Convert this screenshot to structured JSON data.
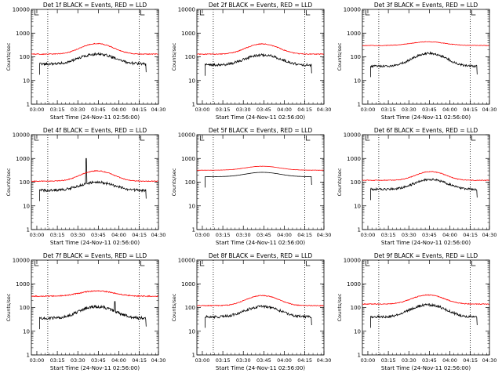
{
  "figure": {
    "x_tick_labels": [
      "03:00",
      "03:15",
      "03:30",
      "03:45",
      "04:00",
      "04:15",
      "04:30"
    ],
    "y_tick_labels": [
      "1",
      "10",
      "100",
      "1000",
      "10000"
    ],
    "colors": {
      "events": "#000000",
      "lld": "#ff0000",
      "axes": "#000000",
      "background": "#ffffff"
    }
  },
  "chart_data": [
    {
      "type": "line",
      "title": "Det 1f BLACK = Events, RED = LLD",
      "xlabel": "Start Time (24-Nov-11 02:56:00)",
      "ylabel": "Counts/sec",
      "y_scale": "log",
      "ylim": [
        1,
        10000
      ],
      "x_range_minutes": [
        0,
        93
      ],
      "x_tick_minutes": [
        4,
        19,
        34,
        49,
        64,
        79,
        94
      ],
      "vlines_minutes": [
        12,
        79
      ],
      "markers_minutes": [
        2.5,
        80
      ],
      "series": [
        {
          "key": "events",
          "start": 6,
          "end": 84,
          "base": 50,
          "peak": 130,
          "center": 48,
          "width": 15,
          "noise": 0.25
        },
        {
          "key": "lld",
          "start": 0,
          "end": 93,
          "base": 130,
          "peak": 360,
          "center": 48,
          "width": 14,
          "noise": 0.08
        }
      ]
    },
    {
      "type": "line",
      "title": "Det 2f BLACK = Events, RED = LLD",
      "xlabel": "Start Time (24-Nov-11 02:56:00)",
      "ylabel": "Counts/sec",
      "y_scale": "log",
      "ylim": [
        1,
        10000
      ],
      "x_range_minutes": [
        0,
        93
      ],
      "x_tick_minutes": [
        4,
        19,
        34,
        49,
        64,
        79,
        94
      ],
      "vlines_minutes": [
        12,
        79
      ],
      "markers_minutes": [
        2.5,
        80
      ],
      "series": [
        {
          "key": "events",
          "start": 6,
          "end": 84,
          "base": 45,
          "peak": 120,
          "center": 48,
          "width": 15,
          "noise": 0.25
        },
        {
          "key": "lld",
          "start": 0,
          "end": 93,
          "base": 130,
          "peak": 350,
          "center": 48,
          "width": 14,
          "noise": 0.08
        }
      ]
    },
    {
      "type": "line",
      "title": "Det 3f BLACK = Events, RED = LLD",
      "xlabel": "Start Time (24-Nov-11 02:56:00)",
      "ylabel": "Counts/sec",
      "y_scale": "log",
      "ylim": [
        1,
        10000
      ],
      "x_range_minutes": [
        0,
        93
      ],
      "x_tick_minutes": [
        4,
        19,
        34,
        49,
        64,
        79,
        94
      ],
      "vlines_minutes": [
        12,
        79
      ],
      "markers_minutes": [
        2.5,
        80
      ],
      "series": [
        {
          "key": "events",
          "start": 6,
          "end": 84,
          "base": 40,
          "peak": 140,
          "center": 49,
          "width": 14,
          "noise": 0.22
        },
        {
          "key": "lld",
          "start": 0,
          "end": 93,
          "base": 300,
          "peak": 430,
          "center": 48,
          "width": 16,
          "noise": 0.05
        }
      ]
    },
    {
      "type": "line",
      "title": "Det 4f BLACK = Events, RED = LLD",
      "xlabel": "Start Time (24-Nov-11 02:56:00)",
      "ylabel": "Counts/sec",
      "y_scale": "log",
      "ylim": [
        1,
        10000
      ],
      "x_range_minutes": [
        0,
        93
      ],
      "x_tick_minutes": [
        4,
        19,
        34,
        49,
        64,
        79,
        94
      ],
      "vlines_minutes": [
        12,
        79
      ],
      "markers_minutes": [
        2.5,
        80
      ],
      "series": [
        {
          "key": "events",
          "start": 6,
          "end": 84,
          "base": 45,
          "peak": 100,
          "center": 48,
          "width": 15,
          "noise": 0.25,
          "spike_minute": 40,
          "spike_value": 1000
        },
        {
          "key": "lld",
          "start": 0,
          "end": 93,
          "base": 110,
          "peak": 300,
          "center": 48,
          "width": 14,
          "noise": 0.08
        }
      ]
    },
    {
      "type": "line",
      "title": "Det 5f BLACK = Events, RED = LLD",
      "xlabel": "Start Time (24-Nov-11 02:56:00)",
      "ylabel": "Counts/sec",
      "y_scale": "log",
      "ylim": [
        1,
        10000
      ],
      "x_range_minutes": [
        0,
        93
      ],
      "x_tick_minutes": [
        4,
        19,
        34,
        49,
        64,
        79,
        94
      ],
      "vlines_minutes": [
        12,
        79
      ],
      "markers_minutes": [
        2.5,
        80
      ],
      "series": [
        {
          "key": "events",
          "start": 6,
          "end": 84,
          "base": 170,
          "peak": 260,
          "center": 48,
          "width": 16,
          "noise": 0.01
        },
        {
          "key": "lld",
          "start": 0,
          "end": 93,
          "base": 320,
          "peak": 470,
          "center": 48,
          "width": 16,
          "noise": 0.02
        }
      ]
    },
    {
      "type": "line",
      "title": "Det 6f BLACK = Events, RED = LLD",
      "xlabel": "Start Time (24-Nov-11 02:56:00)",
      "ylabel": "Counts/sec",
      "y_scale": "log",
      "ylim": [
        1,
        10000
      ],
      "x_range_minutes": [
        0,
        93
      ],
      "x_tick_minutes": [
        4,
        19,
        34,
        49,
        64,
        79,
        94
      ],
      "vlines_minutes": [
        12,
        79
      ],
      "markers_minutes": [
        2.5,
        80
      ],
      "series": [
        {
          "key": "events",
          "start": 6,
          "end": 84,
          "base": 50,
          "peak": 130,
          "center": 50,
          "width": 14,
          "noise": 0.22
        },
        {
          "key": "lld",
          "start": 0,
          "end": 93,
          "base": 120,
          "peak": 280,
          "center": 50,
          "width": 13,
          "noise": 0.07
        }
      ]
    },
    {
      "type": "line",
      "title": "Det 7f BLACK = Events, RED = LLD",
      "xlabel": "Start Time (24-Nov-11 02:56:00)",
      "ylabel": "Counts/sec",
      "y_scale": "log",
      "ylim": [
        1,
        10000
      ],
      "x_range_minutes": [
        0,
        93
      ],
      "x_tick_minutes": [
        4,
        19,
        34,
        49,
        64,
        79,
        94
      ],
      "vlines_minutes": [
        12,
        79
      ],
      "markers_minutes": [
        2.5,
        80
      ],
      "series": [
        {
          "key": "events",
          "start": 6,
          "end": 84,
          "base": 35,
          "peak": 110,
          "center": 48,
          "width": 15,
          "noise": 0.3,
          "spike_minute": 61,
          "spike_value": 180
        },
        {
          "key": "lld",
          "start": 0,
          "end": 93,
          "base": 300,
          "peak": 500,
          "center": 48,
          "width": 16,
          "noise": 0.1
        }
      ]
    },
    {
      "type": "line",
      "title": "Det 8f BLACK = Events, RED = LLD",
      "xlabel": "Start Time (24-Nov-11 02:56:00)",
      "ylabel": "Counts/sec",
      "y_scale": "log",
      "ylim": [
        1,
        10000
      ],
      "x_range_minutes": [
        0,
        93
      ],
      "x_tick_minutes": [
        4,
        19,
        34,
        49,
        64,
        79,
        94
      ],
      "vlines_minutes": [
        12,
        79
      ],
      "markers_minutes": [
        2.5,
        80
      ],
      "series": [
        {
          "key": "events",
          "start": 6,
          "end": 84,
          "base": 40,
          "peak": 110,
          "center": 48,
          "width": 15,
          "noise": 0.25
        },
        {
          "key": "lld",
          "start": 0,
          "end": 93,
          "base": 120,
          "peak": 320,
          "center": 48,
          "width": 14,
          "noise": 0.08
        }
      ]
    },
    {
      "type": "line",
      "title": "Det 9f BLACK = Events, RED = LLD",
      "xlabel": "Start Time (24-Nov-11 02:56:00)",
      "ylabel": "Counts/sec",
      "y_scale": "log",
      "ylim": [
        1,
        10000
      ],
      "x_range_minutes": [
        0,
        93
      ],
      "x_tick_minutes": [
        4,
        19,
        34,
        49,
        64,
        79,
        94
      ],
      "vlines_minutes": [
        12,
        79
      ],
      "markers_minutes": [
        2.5,
        80
      ],
      "series": [
        {
          "key": "events",
          "start": 6,
          "end": 84,
          "base": 40,
          "peak": 130,
          "center": 48,
          "width": 15,
          "noise": 0.25
        },
        {
          "key": "lld",
          "start": 0,
          "end": 93,
          "base": 140,
          "peak": 340,
          "center": 48,
          "width": 14,
          "noise": 0.08
        }
      ]
    }
  ]
}
